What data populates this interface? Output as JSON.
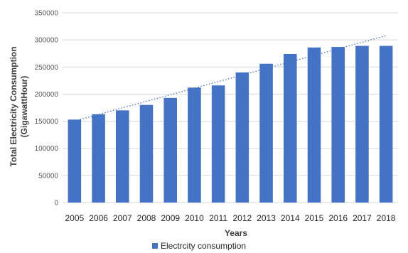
{
  "chart_data": {
    "type": "bar",
    "categories": [
      "2005",
      "2006",
      "2007",
      "2008",
      "2009",
      "2010",
      "2011",
      "2012",
      "2013",
      "2014",
      "2015",
      "2016",
      "2017",
      "2018"
    ],
    "series": [
      {
        "name": "Electrcity consumption",
        "values": [
          153000,
          163000,
          170000,
          180000,
          193000,
          212000,
          216000,
          240000,
          256000,
          274000,
          286000,
          287000,
          289000,
          289000
        ],
        "color": "#4472c4"
      }
    ],
    "trendline": {
      "type": "linear",
      "style": "dotted",
      "color": "#4472c4"
    },
    "ylim": [
      0,
      350000
    ],
    "yticks": [
      "0",
      "50000",
      "100000",
      "150000",
      "200000",
      "250000",
      "300000",
      "350000"
    ],
    "xlabel": "Years",
    "ylabel_lines": [
      "Total Electricity Consumption",
      "(GigawattHour)"
    ],
    "grid": true,
    "legend_position": "bottom"
  }
}
